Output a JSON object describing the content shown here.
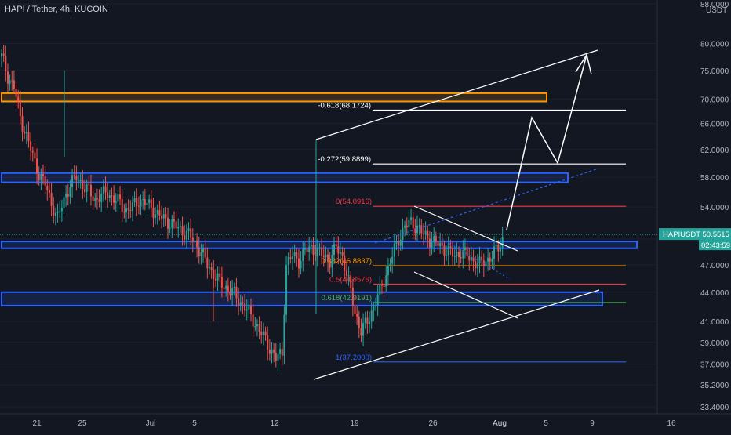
{
  "chart_data": {
    "type": "candlestick",
    "title": "HAPI / Tether, 4h, KUCOIN",
    "ylabel": "USDT",
    "y_axis_scale": "log",
    "ylim": [
      33.4,
      88.0
    ],
    "y_ticks": [
      "88.0000",
      "80.0000",
      "75.0000",
      "70.0000",
      "66.0000",
      "62.0000",
      "58.0000",
      "54.0000",
      "50.0000",
      "47.0000",
      "44.0000",
      "41.0000",
      "39.0000",
      "37.0000",
      "35.2000",
      "33.4000"
    ],
    "x_ticks": [
      "21",
      "25",
      "Jul",
      "5",
      "12",
      "19",
      "26",
      "Aug",
      "5",
      "9",
      "16"
    ],
    "x_ticks_highlighted": [
      "Aug"
    ],
    "price_label": {
      "symbol": "HAPIUSDT",
      "price": "50.5515",
      "countdown": "02:43:59"
    },
    "candles_close_path": [
      [
        0,
        77.5
      ],
      [
        3,
        74
      ],
      [
        6,
        72
      ],
      [
        9,
        67
      ],
      [
        12,
        64
      ],
      [
        15,
        61
      ],
      [
        18,
        58.5
      ],
      [
        21,
        57
      ],
      [
        24,
        54.5
      ],
      [
        27,
        52.5
      ],
      [
        30,
        55
      ],
      [
        33,
        57
      ],
      [
        36,
        58
      ],
      [
        39,
        57
      ],
      [
        42,
        56
      ],
      [
        45,
        55
      ],
      [
        48,
        55.5
      ],
      [
        51,
        56
      ],
      [
        54,
        55
      ],
      [
        57,
        54.5
      ],
      [
        60,
        53.5
      ],
      [
        63,
        54
      ],
      [
        66,
        55
      ],
      [
        69,
        54.5
      ],
      [
        72,
        54
      ],
      [
        75,
        53
      ],
      [
        78,
        52.5
      ],
      [
        81,
        52
      ],
      [
        84,
        51.5
      ],
      [
        87,
        51
      ],
      [
        90,
        50.5
      ],
      [
        93,
        49.5
      ],
      [
        96,
        48.5
      ],
      [
        99,
        47
      ],
      [
        102,
        46
      ],
      [
        105,
        45
      ],
      [
        108,
        44.5
      ],
      [
        111,
        44
      ],
      [
        114,
        43.2
      ],
      [
        117,
        42.5
      ],
      [
        120,
        41.5
      ],
      [
        123,
        40.5
      ],
      [
        126,
        39.5
      ],
      [
        129,
        38.5
      ],
      [
        132,
        37.5
      ],
      [
        135,
        38
      ],
      [
        137,
        47
      ],
      [
        140,
        48
      ],
      [
        143,
        47.5
      ],
      [
        146,
        48.5
      ],
      [
        149,
        49
      ],
      [
        152,
        48.5
      ],
      [
        155,
        48
      ],
      [
        158,
        47.5
      ],
      [
        161,
        49
      ],
      [
        164,
        48
      ],
      [
        167,
        45
      ],
      [
        170,
        42
      ],
      [
        173,
        40
      ],
      [
        176,
        41
      ],
      [
        179,
        42.5
      ],
      [
        182,
        44
      ],
      [
        185,
        46
      ],
      [
        188,
        48
      ],
      [
        191,
        50
      ],
      [
        194,
        51.5
      ],
      [
        197,
        52
      ],
      [
        200,
        51.5
      ],
      [
        203,
        50.5
      ],
      [
        206,
        50
      ],
      [
        209,
        49.5
      ],
      [
        212,
        49
      ],
      [
        215,
        48.5
      ],
      [
        218,
        48
      ],
      [
        221,
        48.5
      ],
      [
        224,
        48
      ],
      [
        227,
        47.5
      ],
      [
        230,
        47
      ],
      [
        233,
        47.5
      ],
      [
        236,
        48
      ],
      [
        239,
        49
      ],
      [
        242,
        50.55
      ]
    ],
    "horizontal_lines": [
      {
        "price": 68.1724,
        "label": "-0.618(68.1724)",
        "color": "#ffffff"
      },
      {
        "price": 59.8899,
        "label": "-0.272(59.8899)",
        "color": "#ffffff"
      },
      {
        "price": 54.0916,
        "label": "0(54.0916)",
        "color": "#f23645"
      },
      {
        "price": 46.8837,
        "label": "0.382(46.8837)",
        "color": "#ff9800"
      },
      {
        "price": 44.8576,
        "label": "0.5(44.8576)",
        "color": "#f23645"
      },
      {
        "price": 42.9191,
        "label": "0.618(42.9191)",
        "color": "#4caf50"
      },
      {
        "price": 37.2,
        "label": "1(37.2000)",
        "color": "#2962ff"
      }
    ],
    "zones": [
      {
        "from": 69.6,
        "to": 71.0,
        "color": "#ff9800"
      },
      {
        "from": 57.3,
        "to": 58.6,
        "color": "#2962ff"
      },
      {
        "from": 48.9,
        "to": 49.7,
        "color": "#2962ff"
      },
      {
        "from": 42.6,
        "to": 44.0,
        "color": "#2962ff"
      }
    ]
  }
}
